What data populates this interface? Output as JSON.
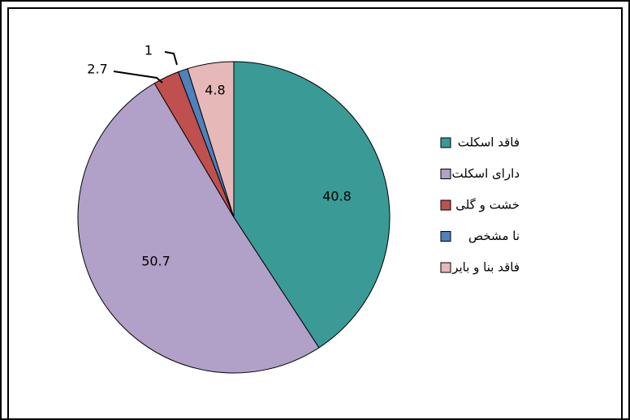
{
  "chart_data": {
    "type": "pie",
    "categories": [
      "فاقد اسکلت",
      "دارای اسکلت",
      "خشت و گلی",
      "نا مشخص",
      "فاقد بنا و بایر"
    ],
    "values": [
      40.8,
      50.7,
      2.7,
      1.0,
      4.8
    ],
    "colors": [
      "#3a9a96",
      "#b1a0c8",
      "#c0504d",
      "#4f81bd",
      "#e6b9b8"
    ],
    "legend": "right"
  }
}
